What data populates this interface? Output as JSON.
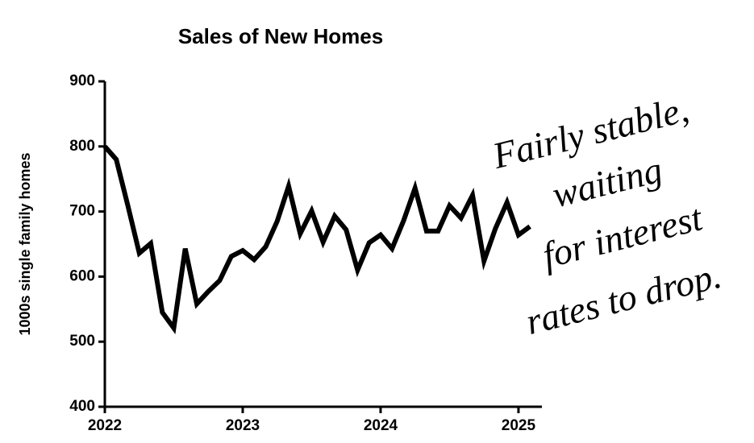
{
  "chart_data": {
    "type": "line",
    "title": "Sales of New Homes",
    "y_label": "1000s single family homes",
    "annotation": [
      "Fairly stable,",
      "waiting",
      "for interest",
      "rates to drop."
    ],
    "x": [
      2022,
      2022.083,
      2022.167,
      2022.25,
      2022.333,
      2022.417,
      2022.5,
      2022.583,
      2022.667,
      2022.75,
      2022.833,
      2022.917,
      2023,
      2023.083,
      2023.167,
      2023.25,
      2023.333,
      2023.417,
      2023.5,
      2023.583,
      2023.667,
      2023.75,
      2023.833,
      2023.917,
      2024,
      2024.083,
      2024.167,
      2024.25,
      2024.333,
      2024.417,
      2024.5,
      2024.583,
      2024.667,
      2024.75,
      2024.833,
      2024.917,
      2025,
      2025.083
    ],
    "series": [
      {
        "name": "Sales",
        "color": "#000000",
        "values": [
          800,
          780,
          709,
          636,
          651,
          545,
          521,
          643,
          558,
          577,
          594,
          631,
          640,
          626,
          646,
          685,
          739,
          666,
          701,
          653,
          693,
          672,
          610,
          652,
          664,
          643,
          686,
          736,
          670,
          670,
          709,
          690,
          725,
          624,
          674,
          714,
          664,
          677
        ]
      }
    ],
    "xlim": [
      2022,
      2025.17
    ],
    "xticks": [
      2022,
      2023,
      2024,
      2025
    ],
    "ylim": [
      400,
      900
    ],
    "yticks": [
      400,
      500,
      600,
      700,
      800,
      900
    ],
    "grid": false
  }
}
